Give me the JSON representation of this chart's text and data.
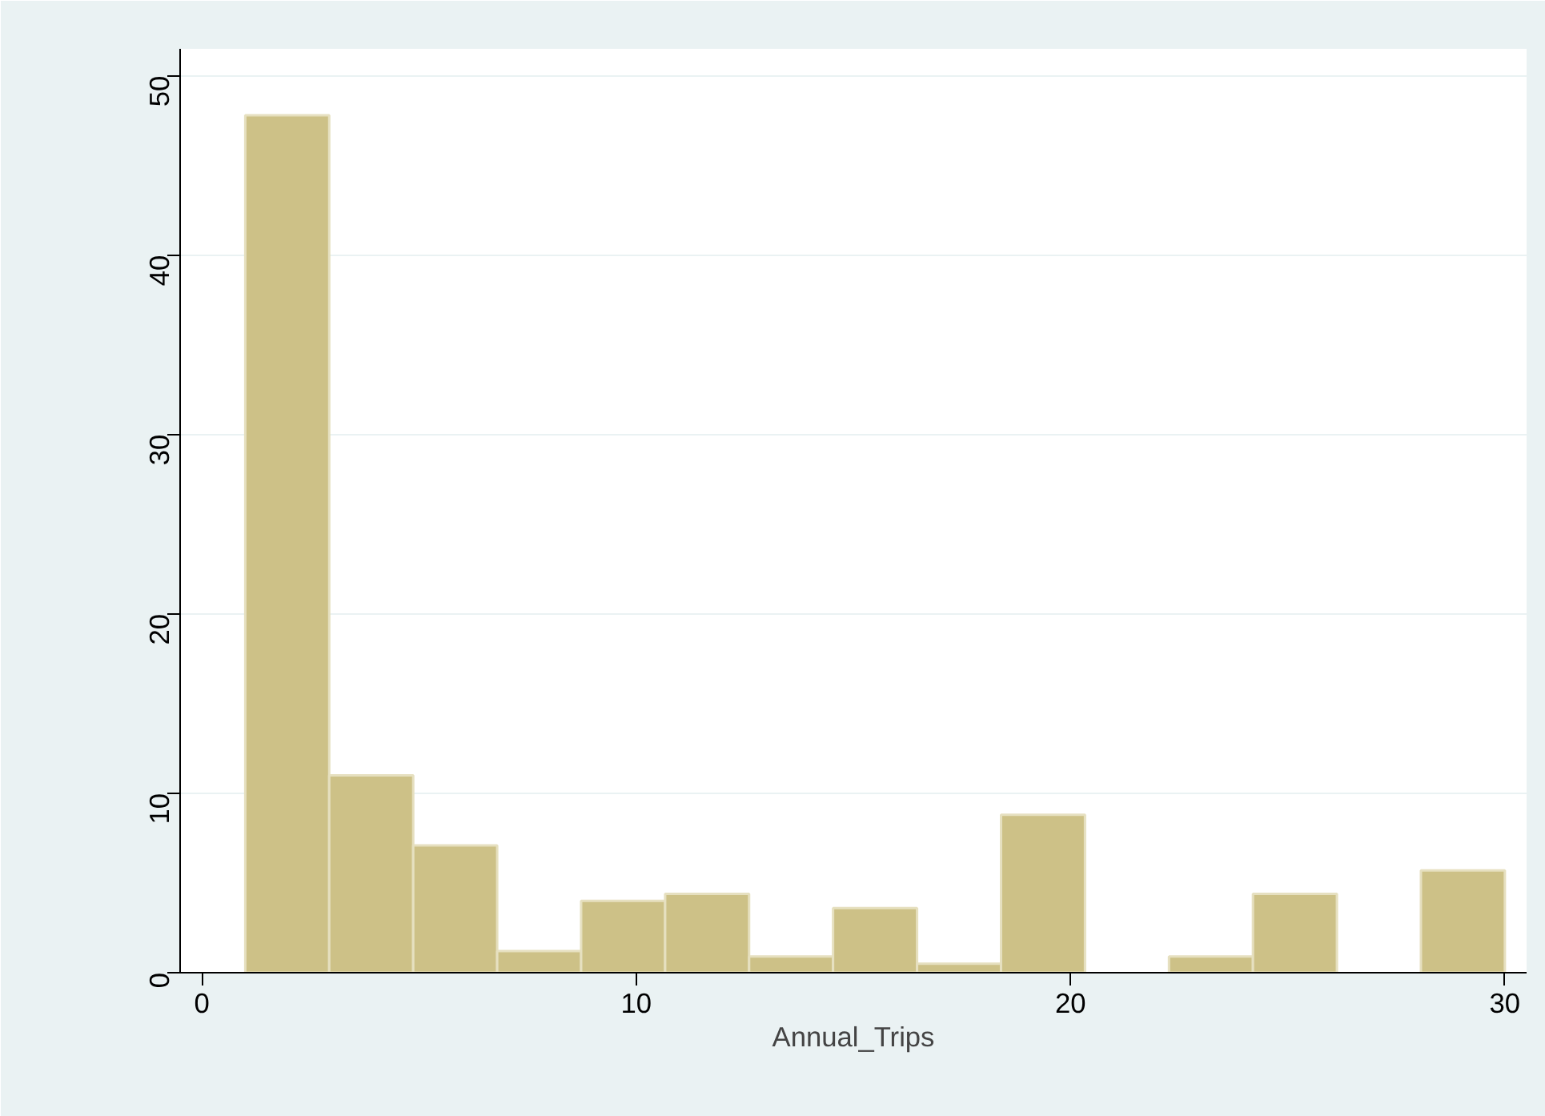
{
  "chart_data": {
    "type": "histogram",
    "xlabel": "Annual_Trips",
    "bins": [
      1,
      2.933,
      4.867,
      6.8,
      8.733,
      10.667,
      12.6,
      14.533,
      16.467,
      18.4,
      20.333,
      22.267,
      24.2,
      26.133,
      28.067,
      30
    ],
    "values": [
      47.8,
      11.0,
      7.1,
      1.2,
      4.0,
      4.4,
      0.9,
      3.6,
      0.5,
      8.8,
      0,
      0.9,
      4.4,
      0,
      5.7
    ],
    "color": "#cdc187",
    "xlim": [
      -0.5,
      30.5
    ],
    "ylim": [
      0,
      51.5
    ],
    "xticks": [
      0,
      10,
      20,
      30
    ],
    "yticks": [
      0,
      10,
      20,
      30,
      40,
      50
    ],
    "grid": "y"
  }
}
